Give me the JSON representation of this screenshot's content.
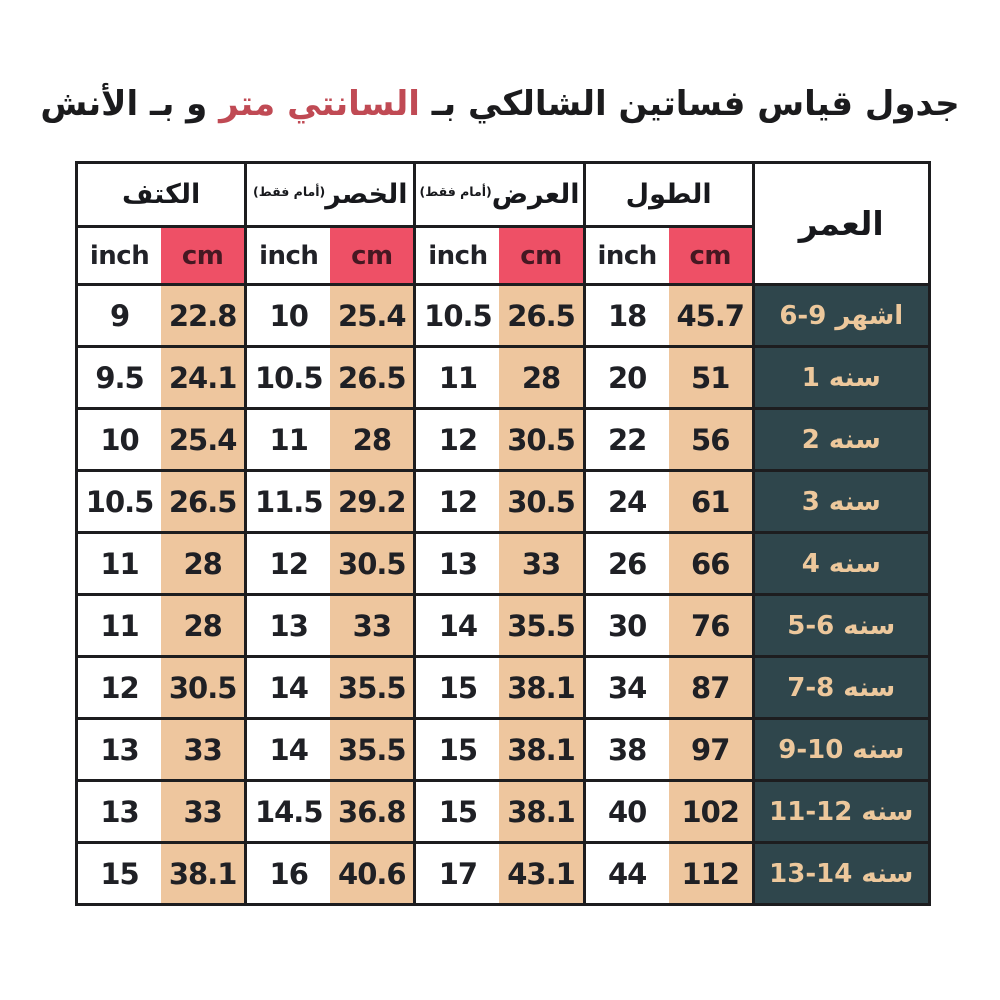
{
  "title": {
    "prefix": "جدول قياس فساتين الشالكي بـ ",
    "highlight": "السانتي متر",
    "suffix": " و بـ الأنش"
  },
  "chart_data": {
    "type": "table",
    "title": "جدول قياس فساتين الشالكي بـ السانتي متر و بـ الأنش",
    "direction": "rtl",
    "age_column_label": "العمر",
    "units": {
      "inch": "inch",
      "cm": "cm"
    },
    "column_groups": [
      {
        "key": "shoulder",
        "label": "الكتف",
        "note": ""
      },
      {
        "key": "waist",
        "label": "الخصر",
        "note": "(أمام فقط)"
      },
      {
        "key": "width",
        "label": "العرض",
        "note": "(أمام فقط)"
      },
      {
        "key": "length",
        "label": "الطول",
        "note": ""
      }
    ],
    "rows": [
      {
        "age": "6-9 اشهر",
        "values": [
          "9",
          "22.8",
          "10",
          "25.4",
          "10.5",
          "26.5",
          "18",
          "45.7"
        ]
      },
      {
        "age": "سنه 1",
        "values": [
          "9.5",
          "24.1",
          "10.5",
          "26.5",
          "11",
          "28",
          "20",
          "51"
        ]
      },
      {
        "age": "سنه 2",
        "values": [
          "10",
          "25.4",
          "11",
          "28",
          "12",
          "30.5",
          "22",
          "56"
        ]
      },
      {
        "age": "سنه 3",
        "values": [
          "10.5",
          "26.5",
          "11.5",
          "29.2",
          "12",
          "30.5",
          "24",
          "61"
        ]
      },
      {
        "age": "سنه 4",
        "values": [
          "11",
          "28",
          "12",
          "30.5",
          "13",
          "33",
          "26",
          "66"
        ]
      },
      {
        "age": "سنه 6-5",
        "values": [
          "11",
          "28",
          "13",
          "33",
          "14",
          "35.5",
          "30",
          "76"
        ]
      },
      {
        "age": "سنه 8-7",
        "values": [
          "12",
          "30.5",
          "14",
          "35.5",
          "15",
          "38.1",
          "34",
          "87"
        ]
      },
      {
        "age": "سنه 10-9",
        "values": [
          "13",
          "33",
          "14",
          "35.5",
          "15",
          "38.1",
          "38",
          "97"
        ]
      },
      {
        "age": "سنه 12-11",
        "values": [
          "13",
          "33",
          "14.5",
          "36.8",
          "15",
          "38.1",
          "40",
          "102"
        ]
      },
      {
        "age": "سنه 14-13",
        "values": [
          "15",
          "38.1",
          "16",
          "40.6",
          "17",
          "43.1",
          "44",
          "112"
        ]
      }
    ]
  },
  "colors": {
    "page_bg": "#ffffff",
    "title_highlight_red": "#c04a54",
    "cm_header_bg": "#ee5066",
    "cm_header_text": "#451822",
    "cm_column_bg": "#eec69e",
    "age_column_bg": "#2f464c",
    "age_text": "#edc89c",
    "table_border": "#1d1d1f",
    "text_dark": "#1f2025"
  }
}
